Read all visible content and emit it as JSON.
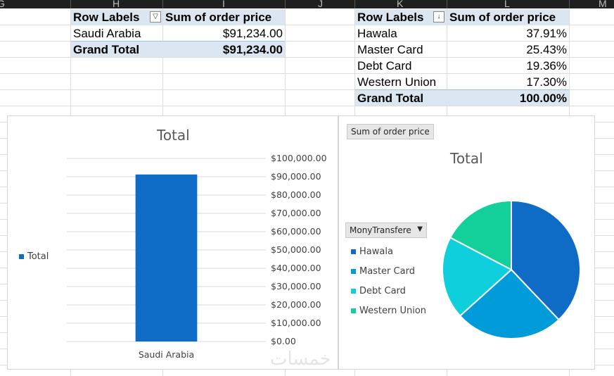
{
  "columns": [
    "G",
    "H",
    "I",
    "J",
    "K",
    "L",
    "M"
  ],
  "pivot1": {
    "header_label": "Row Labels",
    "header_value": "Sum of order price",
    "rows": [
      {
        "label": "Saudi Arabia",
        "value": "$91,234.00"
      }
    ],
    "total_label": "Grand Total",
    "total_value": "$91,234.00"
  },
  "pivot2": {
    "header_label": "Row Labels",
    "header_value": "Sum of order price",
    "rows": [
      {
        "label": "Hawala",
        "value": "37.91%"
      },
      {
        "label": "Master Card",
        "value": "25.43%"
      },
      {
        "label": "Debt Card",
        "value": "19.36%"
      },
      {
        "label": "Western Union",
        "value": "17.30%"
      }
    ],
    "total_label": "Grand Total",
    "total_value": "100.00%"
  },
  "chart_data": [
    {
      "type": "bar",
      "title": "Total",
      "categories": [
        "Saudi Arabia"
      ],
      "series": [
        {
          "name": "Total",
          "values": [
            91234
          ]
        }
      ],
      "ylim": [
        0,
        100000
      ],
      "yticks": [
        "$0.00",
        "$10,000.00",
        "$20,000.00",
        "$30,000.00",
        "$40,000.00",
        "$50,000.00",
        "$60,000.00",
        "$70,000.00",
        "$80,000.00",
        "$90,000.00",
        "$100,000.00"
      ],
      "color": "#0f6cc6",
      "legend": "left",
      "axis_side": "right",
      "grid": true
    },
    {
      "type": "pie",
      "title": "Total",
      "field_button": "Sum of order price",
      "legend_filter": "MonyTransfere",
      "categories": [
        "Hawala",
        "Master Card",
        "Debt Card",
        "Western Union"
      ],
      "values": [
        37.91,
        25.43,
        19.36,
        17.3
      ],
      "colors": [
        "#0f6cc6",
        "#009bd8",
        "#0fcfdc",
        "#13cf9a"
      ],
      "legend": "left"
    }
  ],
  "watermark": "خمسات"
}
